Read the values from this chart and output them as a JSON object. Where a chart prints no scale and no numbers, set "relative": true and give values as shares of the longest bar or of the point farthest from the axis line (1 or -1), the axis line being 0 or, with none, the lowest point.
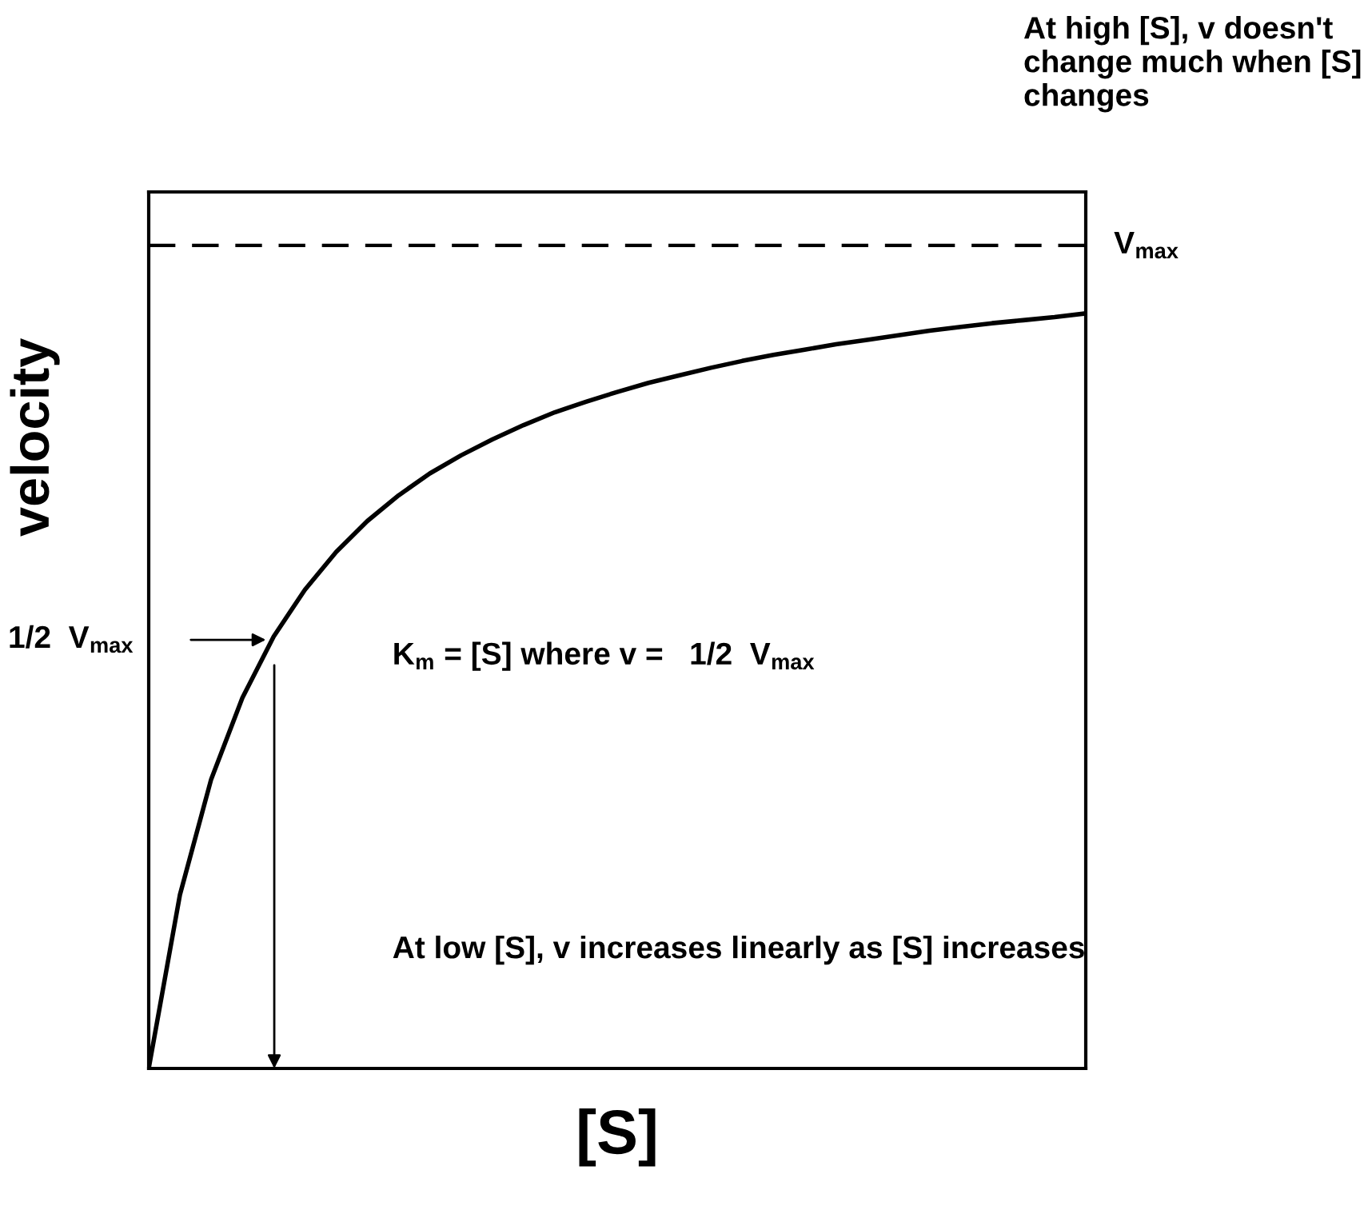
{
  "chart_data": {
    "type": "line",
    "relative": true,
    "xlabel": "[S]",
    "ylabel": "velocity",
    "categories": [
      null,
      null,
      null,
      null,
      null,
      null,
      null,
      null,
      null,
      null,
      null,
      null,
      null,
      null,
      null,
      null,
      null,
      null,
      null,
      null,
      null,
      null,
      null,
      null,
      null,
      null,
      null,
      null,
      null,
      null,
      null
    ],
    "series": [
      {
        "color": "#000000",
        "values": [
          0,
          0.23,
          0.383,
          0.491,
          0.572,
          0.634,
          0.684,
          0.725,
          0.759,
          0.788,
          0.812,
          0.833,
          0.852,
          0.869,
          0.883,
          0.896,
          0.908,
          0.918,
          0.928,
          0.937,
          0.945,
          0.952,
          0.959,
          0.965,
          0.971,
          0.977,
          0.982,
          0.987,
          0.991,
          0.995,
          1.0
        ]
      }
    ],
    "ref_lines": [
      {
        "axis": "y",
        "value": 1.09,
        "label": "V$_{max}$",
        "color": "#000000",
        "line_style": "dashed"
      }
    ],
    "annotations": [
      "At high [S], v doesn't change much when [S] changes",
      "1/2  V$_{max}$",
      "K$_{m}$ = [S] where v =   1/2  V$_{max}$",
      "At low [S], v increases linearly as [S] increases"
    ],
    "legend": false,
    "marker": "none",
    "line_style": "solid"
  }
}
